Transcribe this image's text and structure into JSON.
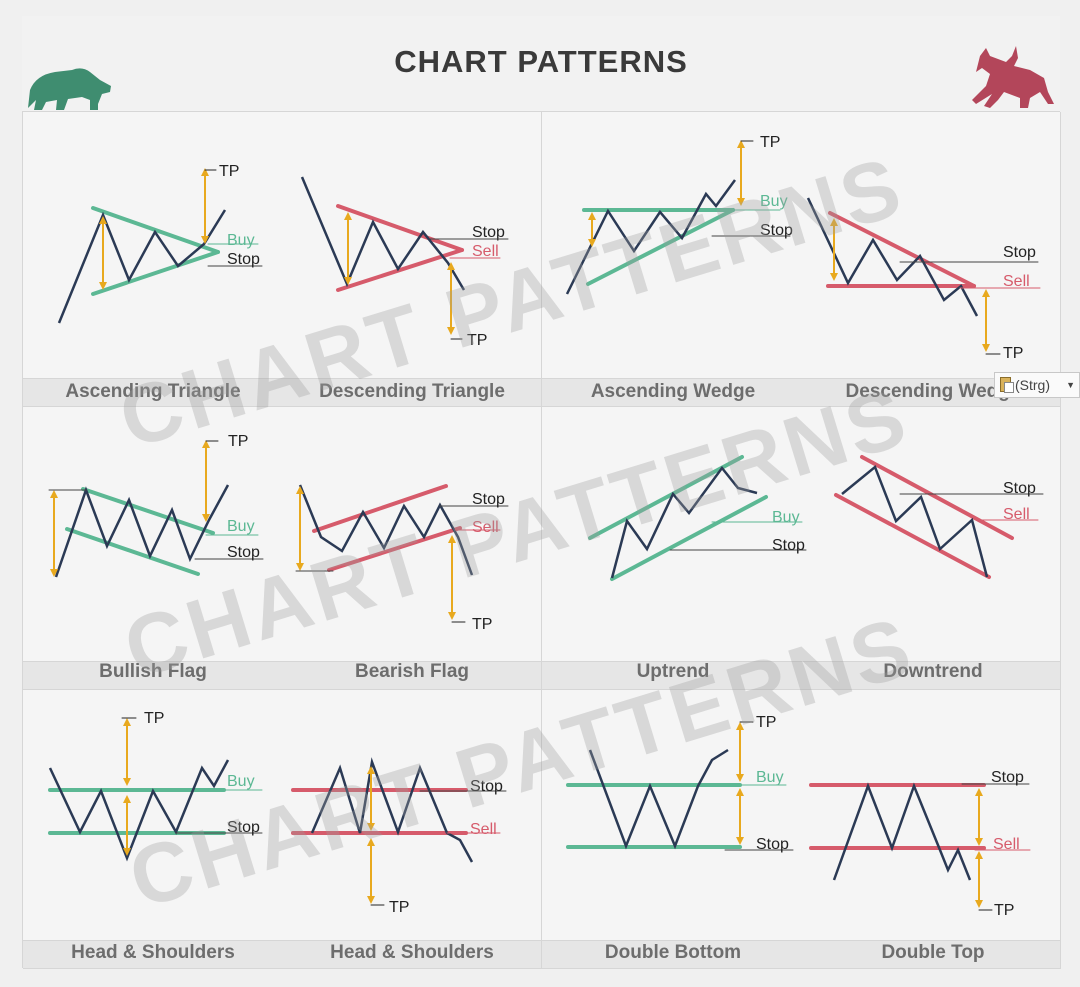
{
  "title": "CHART PATTERNS",
  "watermark": [
    "CHART PATTERNS",
    "CHART PATTERNS",
    "CHART PATTERNS"
  ],
  "colors": {
    "green": "#5cb894",
    "red": "#d65b6b",
    "price": "#2b3a55",
    "arrow": "#e8a91e",
    "title": "#3a3a3a",
    "label": "#6d6d6d",
    "bear_icon": "#3f8d70",
    "bull_icon": "#b3465a"
  },
  "icons": {
    "left": "bear-icon",
    "right": "bull-icon"
  },
  "patterns": [
    {
      "name": "Ascending Triangle",
      "markers": [
        "TP",
        "Buy",
        "Stop"
      ]
    },
    {
      "name": "Descending Triangle",
      "markers": [
        "Stop",
        "Sell",
        "TP"
      ]
    },
    {
      "name": "Ascending Wedge",
      "markers": [
        "TP",
        "Buy",
        "Stop"
      ]
    },
    {
      "name": "Descending Wedge",
      "markers": [
        "Stop",
        "Sell",
        "TP"
      ]
    },
    {
      "name": "Bullish Flag",
      "markers": [
        "TP",
        "Buy",
        "Stop"
      ]
    },
    {
      "name": "Bearish Flag",
      "markers": [
        "Stop",
        "Sell",
        "TP"
      ]
    },
    {
      "name": "Uptrend",
      "markers": [
        "Buy",
        "Stop"
      ]
    },
    {
      "name": "Downtrend",
      "markers": [
        "Stop",
        "Sell"
      ]
    },
    {
      "name": "Head & Shoulders",
      "markers": [
        "TP",
        "Buy",
        "Stop"
      ]
    },
    {
      "name": "Head & Shoulders",
      "markers": [
        "Stop",
        "Sell",
        "TP"
      ]
    },
    {
      "name": "Double Bottom",
      "markers": [
        "TP",
        "Buy",
        "Stop"
      ]
    },
    {
      "name": "Double Top",
      "markers": [
        "Stop",
        "Sell",
        "TP"
      ]
    }
  ],
  "paste_options": {
    "label": "(Strg)",
    "icon": "clipboard-icon"
  }
}
